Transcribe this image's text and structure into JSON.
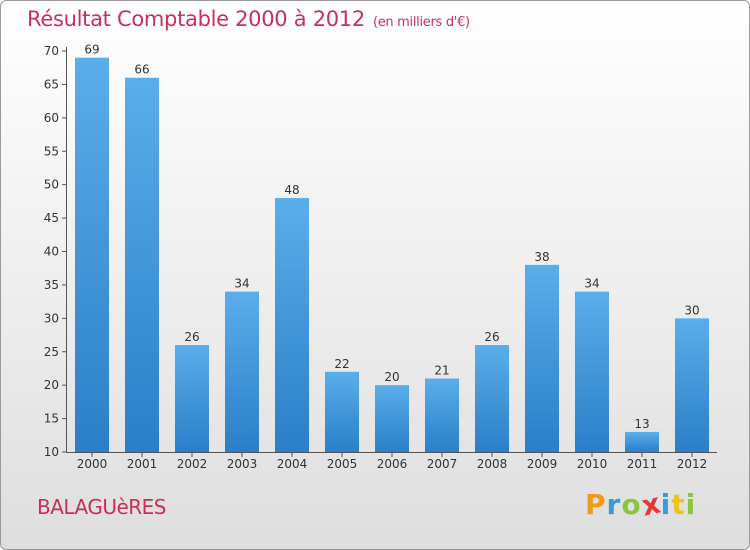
{
  "chart_data": {
    "type": "bar",
    "title": "Résultat Comptable 2000 à 2012",
    "subtitle": "(en milliers d'€)",
    "categories": [
      "2000",
      "2001",
      "2002",
      "2003",
      "2004",
      "2005",
      "2006",
      "2007",
      "2008",
      "2009",
      "2010",
      "2011",
      "2012"
    ],
    "values": [
      69,
      66,
      26,
      34,
      48,
      22,
      20,
      21,
      26,
      38,
      34,
      13,
      30
    ],
    "ylim": [
      10,
      70
    ],
    "yticks": [
      10,
      15,
      20,
      25,
      30,
      35,
      40,
      45,
      50,
      55,
      60,
      65,
      70
    ],
    "xlabel": "",
    "ylabel": "",
    "grid": false,
    "bar_color_top": "#5aaeea",
    "bar_color_bottom": "#2a7fc8"
  },
  "footer": {
    "location": "BALAGUèRES",
    "brand": "Proxiti",
    "brand_letters": [
      "P",
      "r",
      "o",
      "x",
      "i",
      "t",
      "i"
    ],
    "brand_colors": [
      "#f29a1c",
      "#3a9bd9",
      "#8cc63f",
      "#e23a3a",
      "#3a9bd9",
      "#f2c21c",
      "#8cc63f"
    ]
  }
}
